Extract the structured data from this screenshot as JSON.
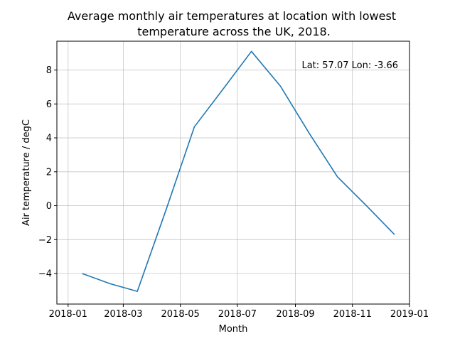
{
  "chart_data": {
    "type": "line",
    "title_line1": "Average monthly air temperatures at location with lowest",
    "title_line2": "temperature across the UK, 2018.",
    "xlabel": "Month",
    "ylabel": "Air temperature / degC",
    "annotation": "Lat: 57.07 Lon: -3.66",
    "grid": true,
    "line_color": "#1f77b4",
    "x_ticks": [
      {
        "date": "2018-01-01",
        "label": "2018-01"
      },
      {
        "date": "2018-03-01",
        "label": "2018-03"
      },
      {
        "date": "2018-05-01",
        "label": "2018-05"
      },
      {
        "date": "2018-07-01",
        "label": "2018-07"
      },
      {
        "date": "2018-09-01",
        "label": "2018-09"
      },
      {
        "date": "2018-11-01",
        "label": "2018-11"
      },
      {
        "date": "2019-01-01",
        "label": "2019-01"
      }
    ],
    "y_ticks": [
      -4,
      -2,
      0,
      2,
      4,
      6,
      8
    ],
    "x_range": [
      "2017-12-20",
      "2019-01-01"
    ],
    "ylim": [
      -5.8,
      9.7
    ],
    "series": [
      {
        "points": [
          {
            "x": "2018-01-16",
            "y": -4.0
          },
          {
            "x": "2018-02-15",
            "y": -4.6
          },
          {
            "x": "2018-03-16",
            "y": -5.05
          },
          {
            "x": "2018-04-16",
            "y": -0.2
          },
          {
            "x": "2018-05-16",
            "y": 4.65
          },
          {
            "x": "2018-06-16",
            "y": 6.9
          },
          {
            "x": "2018-07-16",
            "y": 9.1
          },
          {
            "x": "2018-08-16",
            "y": 7.05
          },
          {
            "x": "2018-09-16",
            "y": 4.25
          },
          {
            "x": "2018-10-16",
            "y": 1.7
          },
          {
            "x": "2018-11-16",
            "y": 0.0
          },
          {
            "x": "2018-12-16",
            "y": -1.7
          }
        ]
      }
    ]
  }
}
